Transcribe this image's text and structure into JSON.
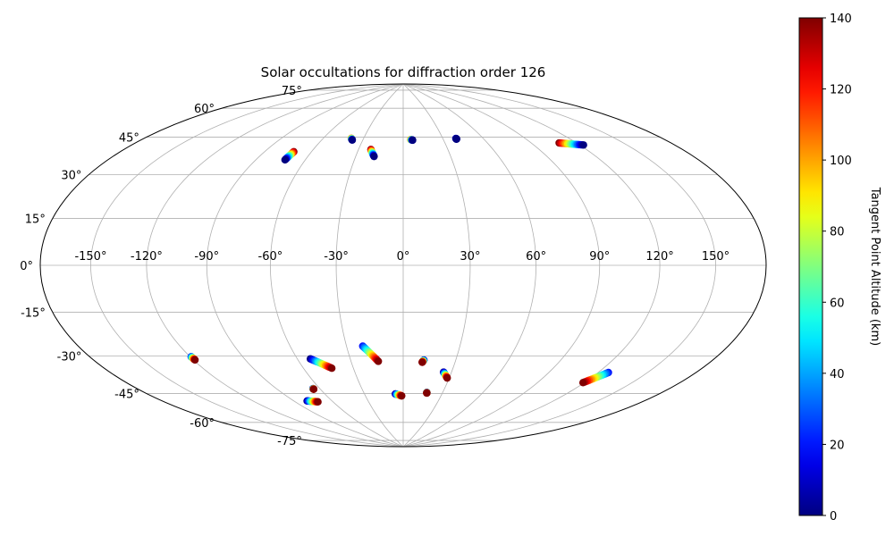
{
  "chart_data": {
    "type": "scatter",
    "title": "Solar occultations for diffraction order 126",
    "projection": "hammer",
    "grid": true,
    "x_tick_labels": [
      "-150°",
      "-120°",
      "-90°",
      "-60°",
      "-30°",
      "0°",
      "30°",
      "60°",
      "90°",
      "120°",
      "150°"
    ],
    "x_ticks": [
      -150,
      -120,
      -90,
      -60,
      -30,
      0,
      30,
      60,
      90,
      120,
      150
    ],
    "y_tick_labels": [
      "-75°",
      "-60°",
      "-45°",
      "-30°",
      "-15°",
      "0°",
      "15°",
      "30°",
      "45°",
      "60°",
      "75°"
    ],
    "y_ticks": [
      -75,
      -60,
      -45,
      -30,
      -15,
      0,
      15,
      30,
      45,
      60,
      75
    ],
    "colorbar": {
      "label": "Tangent Point Altitude (km)",
      "min": 0,
      "max": 140,
      "tick_labels": [
        "0",
        "20",
        "40",
        "60",
        "80",
        "100",
        "120",
        "140"
      ],
      "ticks": [
        0,
        20,
        40,
        60,
        80,
        100,
        120,
        140
      ],
      "colormap": "jet"
    },
    "tracks": [
      {
        "lon": [
          -71.4,
          -72.3
        ],
        "lat": [
          50.5,
          46.5
        ],
        "alt": [
          140,
          0
        ]
      },
      {
        "lon": [
          -39.2,
          -37.8
        ],
        "lat": [
          58.7,
          57.9
        ],
        "alt": [
          110,
          0
        ]
      },
      {
        "lon": [
          -21.7,
          -18.4
        ],
        "lat": [
          53.5,
          50.1
        ],
        "alt": [
          140,
          0
        ]
      },
      {
        "lon": [
          5.7,
          7.0
        ],
        "lat": [
          58.7,
          58.4
        ],
        "alt": [
          110,
          0
        ]
      },
      {
        "lon": [
          39.8,
          40.0
        ],
        "lat": [
          58.6,
          58.3
        ],
        "alt": [
          10,
          0
        ]
      },
      {
        "lon": [
          108.6,
          122.4
        ],
        "lat": [
          51.9,
          49.5
        ],
        "alt": [
          140,
          0
        ]
      },
      {
        "lon": [
          -119.4,
          -119.1
        ],
        "lat": [
          -36.7,
          -38.1
        ],
        "alt": [
          20,
          140
        ]
      },
      {
        "lon": [
          -52.6,
          -43.0
        ],
        "lat": [
          -41.8,
          -46.6
        ],
        "alt": [
          0,
          140
        ]
      },
      {
        "lon": [
          -21.4,
          -14.3
        ],
        "lat": [
          -36.6,
          -43.9
        ],
        "alt": [
          20,
          140
        ]
      },
      {
        "lon": [
          11.8,
          11.0
        ],
        "lat": [
          -43.3,
          -44.4
        ],
        "alt": [
          0,
          140
        ]
      },
      {
        "lon": [
          25.1,
          28.7
        ],
        "lat": [
          -49.0,
          -51.8
        ],
        "alt": [
          0,
          140
        ]
      },
      {
        "lon": [
          126.2,
          119.2
        ],
        "lat": [
          -43.0,
          -48.4
        ],
        "alt": [
          20,
          140
        ]
      },
      {
        "lon": [
          -79.8,
          -72.2
        ],
        "lat": [
          -61.1,
          -62.1
        ],
        "alt": [
          0,
          140
        ]
      },
      {
        "lon": [
          -64.8,
          -64.7
        ],
        "lat": [
          -55.7,
          -56.0
        ],
        "alt": [
          0,
          140
        ]
      },
      {
        "lon": [
          -6.1,
          -1.2
        ],
        "lat": [
          -60.2,
          -61.2
        ],
        "alt": [
          0,
          140
        ]
      },
      {
        "lon": [
          18.0,
          18.1
        ],
        "lat": [
          -59.3,
          -59.6
        ],
        "alt": [
          0,
          140
        ]
      }
    ]
  }
}
